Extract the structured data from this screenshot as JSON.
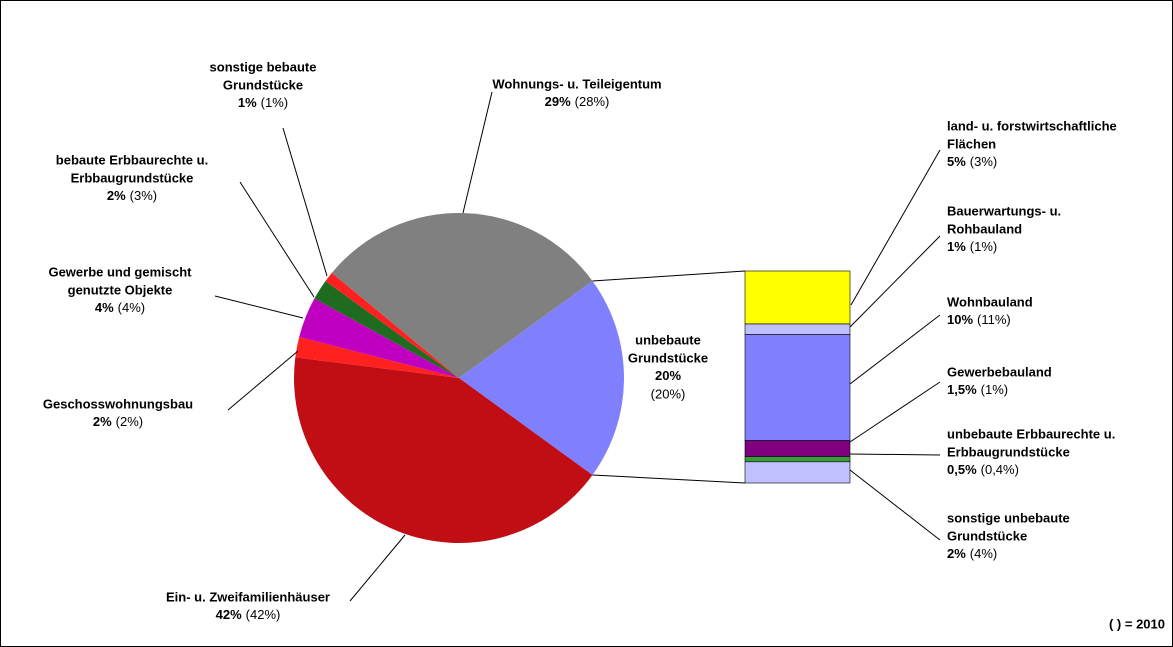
{
  "chart_data": {
    "type": "pie",
    "note": "( ) = 2010",
    "labels": [
      [
        "unbebaute",
        "Grundstücke"
      ],
      [
        "Ein- u. Zweifamilienhäuser"
      ],
      [
        "Geschosswohnungsbau"
      ],
      [
        "Gewerbe und gemischt",
        "genutzte Objekte"
      ],
      [
        "bebaute Erbbaurechte u.",
        "Erbbaugrundstücke"
      ],
      [
        "sonstige bebaute",
        "Grundstücke"
      ],
      [
        "Wohnungs- u. Teileigentum"
      ]
    ],
    "values": [
      20,
      42,
      2,
      4,
      2,
      1,
      29
    ],
    "value_labels": [
      "20%",
      "42%",
      "2%",
      "4%",
      "2%",
      "1%",
      "29%"
    ],
    "values_2010": [
      20,
      42,
      2,
      4,
      3,
      1,
      28
    ],
    "value_labels_2010": [
      "(20%)",
      "(42%)",
      "(2%)",
      "(4%)",
      "(3%)",
      "(1%)",
      "(28%)"
    ],
    "colors": [
      "#8080ff",
      "#c00e14",
      "#ff2020",
      "#c000c0",
      "#1f6b1f",
      "#ff2020",
      "#808080"
    ],
    "breakdown": {
      "labels": [
        [
          "land- u. forstwirtschaftliche",
          "Flächen"
        ],
        [
          "Bauerwartungs- u.",
          "Rohbauland"
        ],
        [
          "Wohnbauland"
        ],
        [
          "Gewerbebauland"
        ],
        [
          "unbebaute Erbbaurechte u.",
          "Erbbaugrundstücke"
        ],
        [
          "sonstige unbebaute",
          "Grundstücke"
        ]
      ],
      "values": [
        5,
        1,
        10,
        1.5,
        0.5,
        2
      ],
      "value_labels": [
        "5%",
        "1%",
        "10%",
        "1,5%",
        "0,5%",
        "2%"
      ],
      "values_2010": [
        3,
        1,
        11,
        1,
        0.4,
        4
      ],
      "value_labels_2010": [
        "(3%)",
        "(1%)",
        "(11%)",
        "(1%)",
        "(0,4%)",
        "(4%)"
      ],
      "colors": [
        "#ffff00",
        "#c0c0ff",
        "#8080ff",
        "#800080",
        "#3c9c3c",
        "#c0c0ff"
      ]
    }
  }
}
